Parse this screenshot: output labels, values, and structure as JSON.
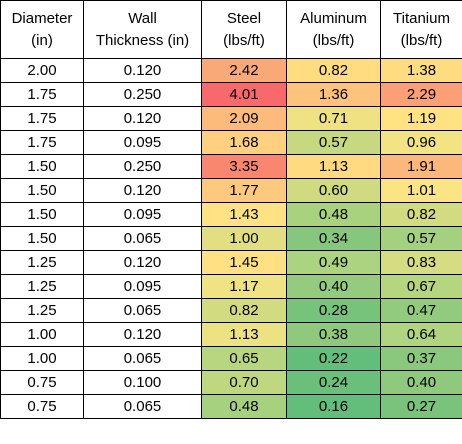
{
  "table": {
    "headers": [
      {
        "line1": "Diameter",
        "line2": "(in)"
      },
      {
        "line1": "Wall",
        "line2": "Thickness (in)"
      },
      {
        "line1": "Steel",
        "line2": "(lbs/ft)"
      },
      {
        "line1": "Aluminum",
        "line2": "(lbs/ft)"
      },
      {
        "line1": "Titanium",
        "line2": "(lbs/ft)"
      }
    ],
    "rows": [
      {
        "diameter": "2.00",
        "wall": "0.120",
        "steel": "2.42",
        "aluminum": "0.82",
        "titanium": "1.38",
        "steel_color": "#F9A877",
        "aluminum_color": "#FFDC80",
        "titanium_color": "#FFDC80"
      },
      {
        "diameter": "1.75",
        "wall": "0.250",
        "steel": "4.01",
        "aluminum": "1.36",
        "titanium": "2.29",
        "steel_color": "#F8696B",
        "aluminum_color": "#FDC37C",
        "titanium_color": "#FBA076"
      },
      {
        "diameter": "1.75",
        "wall": "0.120",
        "steel": "2.09",
        "aluminum": "0.71",
        "titanium": "1.19",
        "steel_color": "#FCBA7B",
        "aluminum_color": "#EEE282",
        "titanium_color": "#FFE383"
      },
      {
        "diameter": "1.75",
        "wall": "0.095",
        "steel": "1.68",
        "aluminum": "0.57",
        "titanium": "0.96",
        "steel_color": "#FED07F",
        "aluminum_color": "#C6D980",
        "titanium_color": "#F2E383"
      },
      {
        "diameter": "1.50",
        "wall": "0.250",
        "steel": "3.35",
        "aluminum": "1.13",
        "titanium": "1.91",
        "steel_color": "#F98770",
        "aluminum_color": "#FFDA80",
        "titanium_color": "#FCB77A"
      },
      {
        "diameter": "1.50",
        "wall": "0.120",
        "steel": "1.77",
        "aluminum": "0.60",
        "titanium": "1.01",
        "steel_color": "#FDC97E",
        "aluminum_color": "#CFDA81",
        "titanium_color": "#FAE483"
      },
      {
        "diameter": "1.50",
        "wall": "0.095",
        "steel": "1.43",
        "aluminum": "0.48",
        "titanium": "0.82",
        "steel_color": "#FFE283",
        "aluminum_color": "#A9D27F",
        "titanium_color": "#D3DB81"
      },
      {
        "diameter": "1.50",
        "wall": "0.065",
        "steel": "1.00",
        "aluminum": "0.34",
        "titanium": "0.57",
        "steel_color": "#E1DF82",
        "aluminum_color": "#86C77D",
        "titanium_color": "#A4D17F"
      },
      {
        "diameter": "1.25",
        "wall": "0.120",
        "steel": "1.45",
        "aluminum": "0.49",
        "titanium": "0.83",
        "steel_color": "#FFE082",
        "aluminum_color": "#ACD37F",
        "titanium_color": "#D6DC81"
      },
      {
        "diameter": "1.25",
        "wall": "0.095",
        "steel": "1.17",
        "aluminum": "0.40",
        "titanium": "0.67",
        "steel_color": "#F0E383",
        "aluminum_color": "#95CB7E",
        "titanium_color": "#B5D67F"
      },
      {
        "diameter": "1.25",
        "wall": "0.065",
        "steel": "0.82",
        "aluminum": "0.28",
        "titanium": "0.47",
        "steel_color": "#D3DB81",
        "aluminum_color": "#78C37C",
        "titanium_color": "#93CB7E"
      },
      {
        "diameter": "1.00",
        "wall": "0.120",
        "steel": "1.13",
        "aluminum": "0.38",
        "titanium": "0.64",
        "steel_color": "#EDE282",
        "aluminum_color": "#90C97D",
        "titanium_color": "#B0D47F"
      },
      {
        "diameter": "1.00",
        "wall": "0.065",
        "steel": "0.65",
        "aluminum": "0.22",
        "titanium": "0.37",
        "steel_color": "#B8D67F",
        "aluminum_color": "#63BE7B",
        "titanium_color": "#8AC87D"
      },
      {
        "diameter": "0.75",
        "wall": "0.100",
        "steel": "0.70",
        "aluminum": "0.24",
        "titanium": "0.40",
        "steel_color": "#BFD880",
        "aluminum_color": "#6AC07B",
        "titanium_color": "#8FC97D"
      },
      {
        "diameter": "0.75",
        "wall": "0.065",
        "steel": "0.48",
        "aluminum": "0.16",
        "titanium": "0.27",
        "steel_color": "#A6D17F",
        "aluminum_color": "#63BE7B",
        "titanium_color": "#79C37C"
      }
    ]
  }
}
